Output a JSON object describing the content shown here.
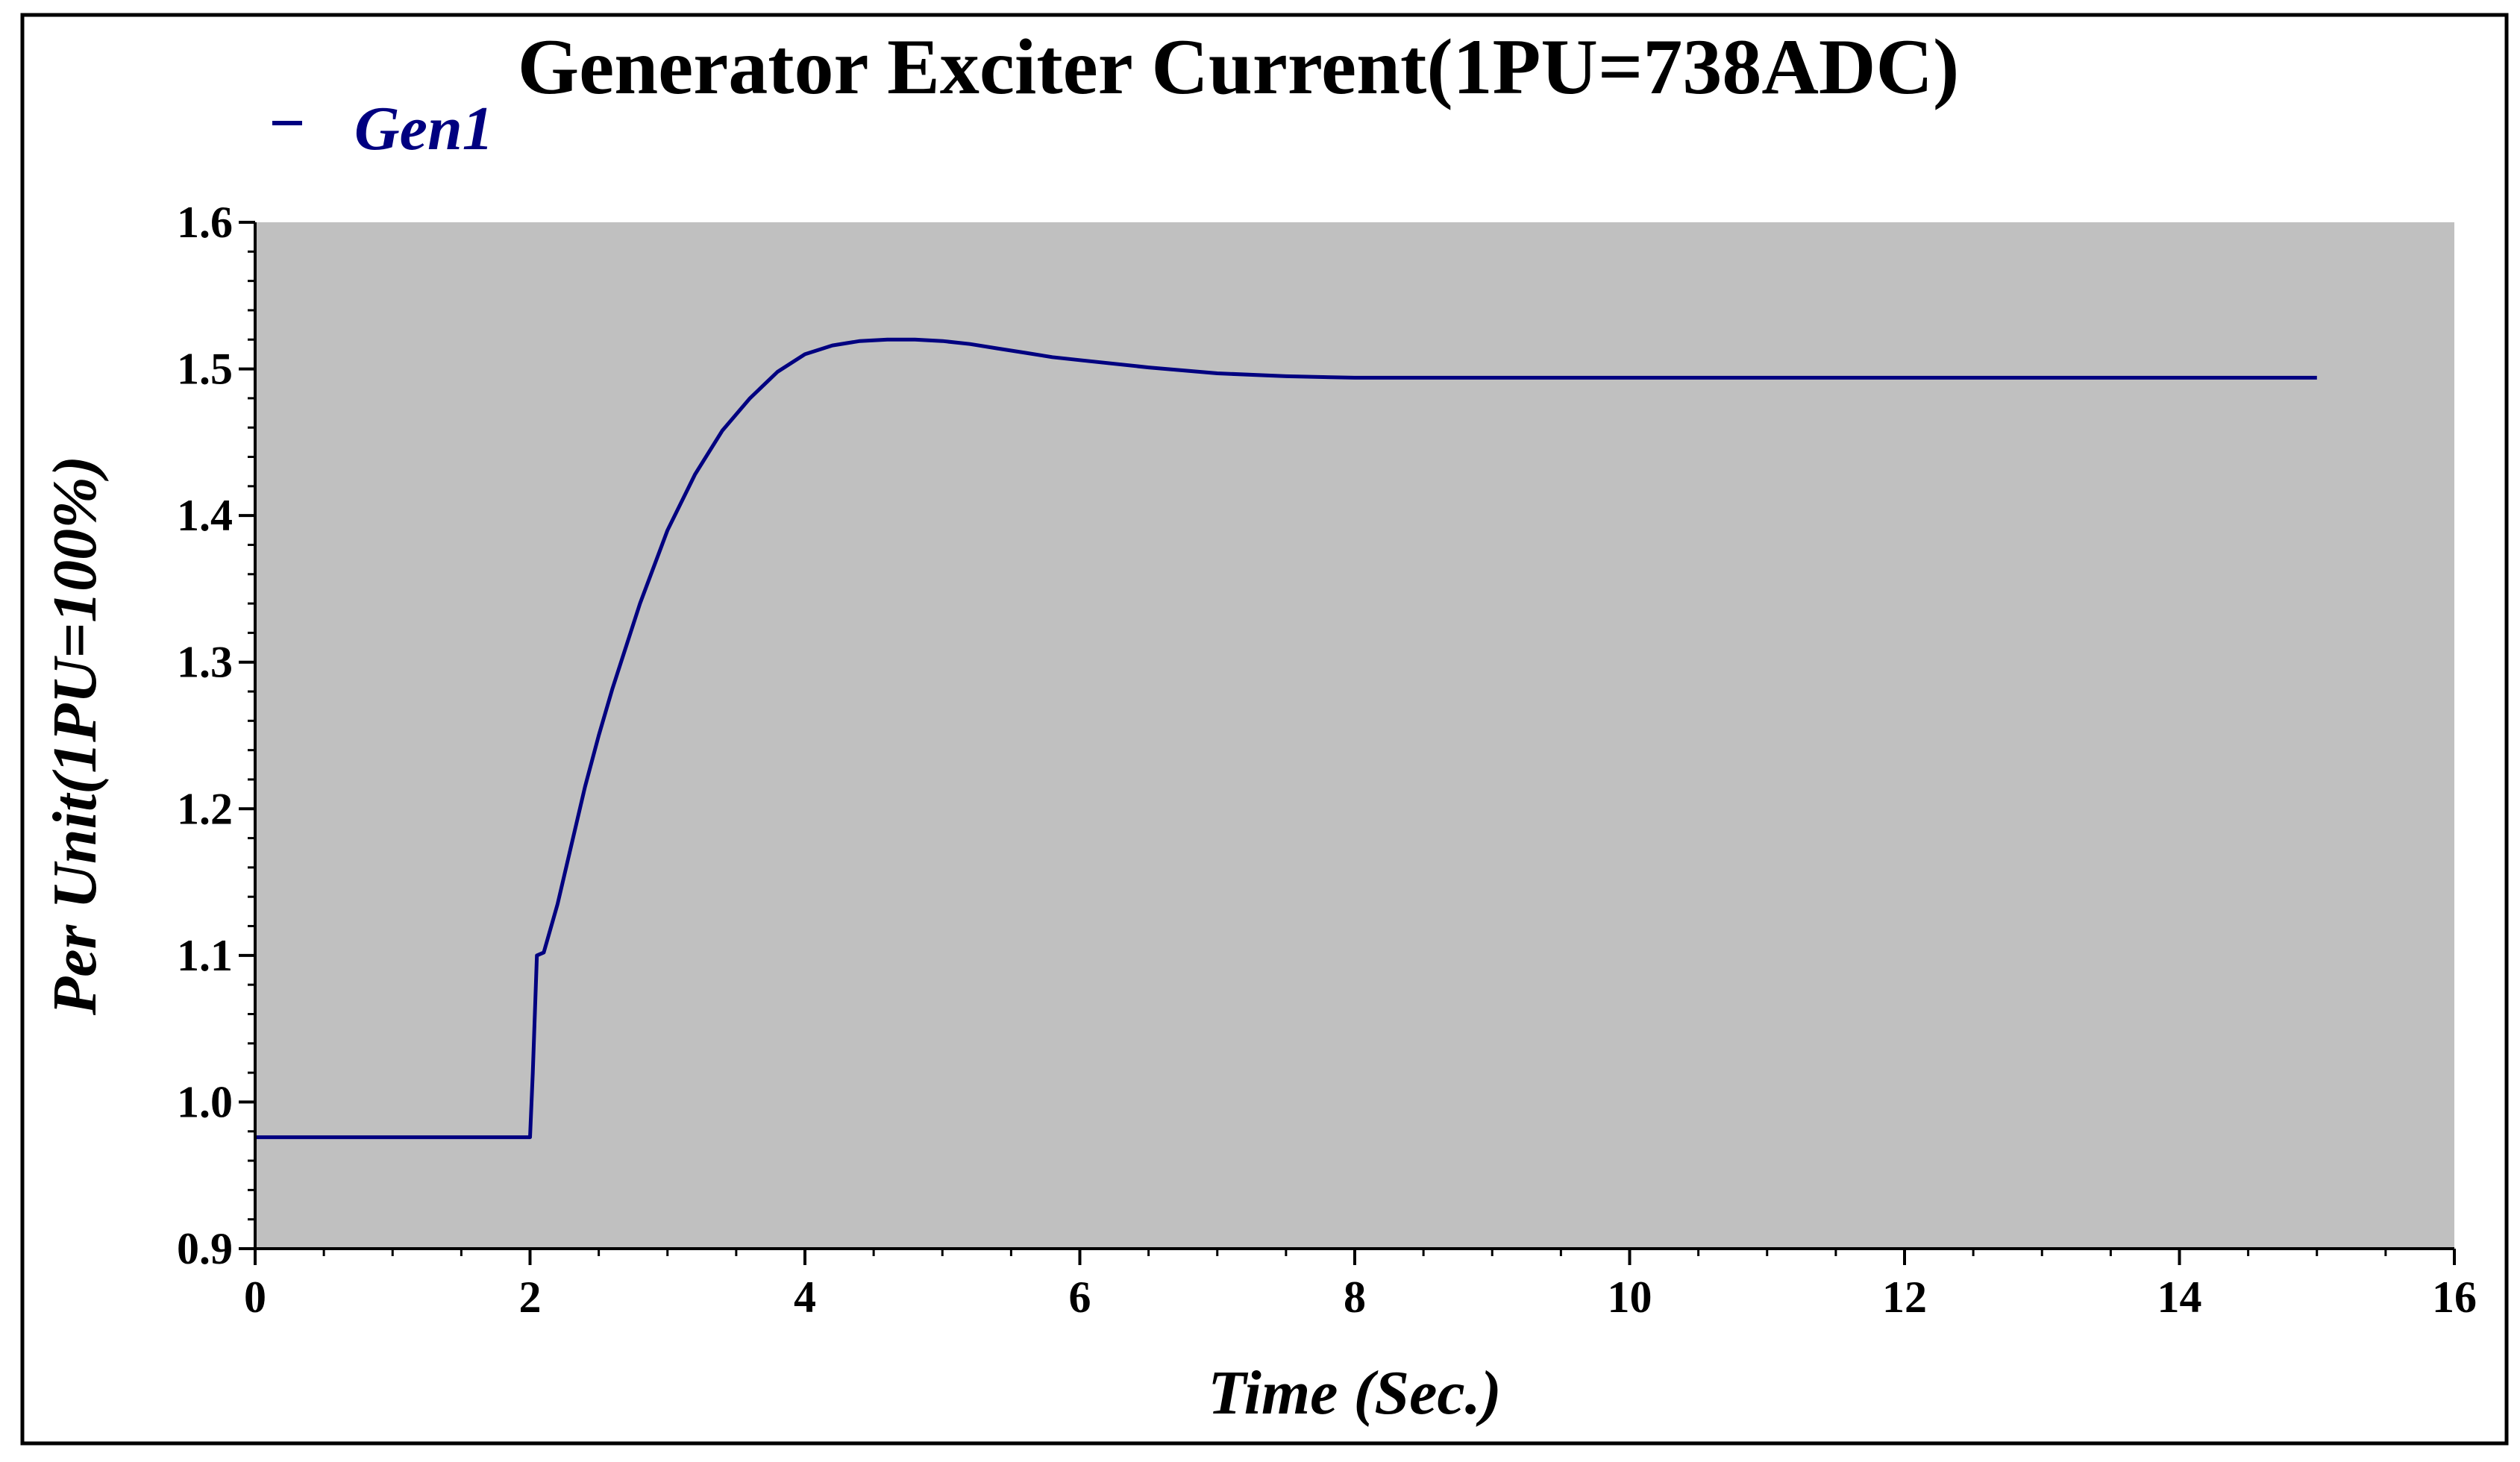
{
  "chart_data": {
    "type": "line",
    "title": "Generator Exciter Current(1PU=738ADC)",
    "xlabel": "Time (Sec.)",
    "ylabel": "Per Unit(1PU=100%)",
    "xlim": [
      0,
      16
    ],
    "ylim": [
      0.9,
      1.6
    ],
    "x_ticks": [
      {
        "value": 0,
        "label": "0"
      },
      {
        "value": 2,
        "label": "2"
      },
      {
        "value": 4,
        "label": "4"
      },
      {
        "value": 6,
        "label": "6"
      },
      {
        "value": 8,
        "label": "8"
      },
      {
        "value": 10,
        "label": "10"
      },
      {
        "value": 12,
        "label": "12"
      },
      {
        "value": 14,
        "label": "14"
      },
      {
        "value": 16,
        "label": "16"
      }
    ],
    "y_ticks": [
      {
        "value": 0.9,
        "label": "0.9"
      },
      {
        "value": 1.0,
        "label": "1.0"
      },
      {
        "value": 1.1,
        "label": "1.1"
      },
      {
        "value": 1.2,
        "label": "1.2"
      },
      {
        "value": 1.3,
        "label": "1.3"
      },
      {
        "value": 1.4,
        "label": "1.4"
      },
      {
        "value": 1.5,
        "label": "1.5"
      },
      {
        "value": 1.6,
        "label": "1.6"
      }
    ],
    "grid": false,
    "plot_background": "#c0c0c0",
    "legend_position": "top-left",
    "series": [
      {
        "name": "Gen1",
        "color": "#000080",
        "x": [
          0,
          2.0,
          2.02,
          2.05,
          2.1,
          2.2,
          2.3,
          2.4,
          2.5,
          2.6,
          2.8,
          3.0,
          3.2,
          3.4,
          3.6,
          3.8,
          4.0,
          4.2,
          4.4,
          4.6,
          4.8,
          5.0,
          5.2,
          5.4,
          5.6,
          5.8,
          6.0,
          6.5,
          7.0,
          7.5,
          8.0,
          9.0,
          10.0,
          12.0,
          14.0,
          15.0
        ],
        "values": [
          0.976,
          0.976,
          1.02,
          1.1,
          1.102,
          1.135,
          1.175,
          1.215,
          1.25,
          1.282,
          1.34,
          1.39,
          1.428,
          1.458,
          1.48,
          1.498,
          1.51,
          1.516,
          1.519,
          1.52,
          1.52,
          1.519,
          1.517,
          1.514,
          1.511,
          1.508,
          1.506,
          1.501,
          1.497,
          1.495,
          1.494,
          1.494,
          1.494,
          1.494,
          1.494,
          1.494
        ]
      }
    ]
  }
}
